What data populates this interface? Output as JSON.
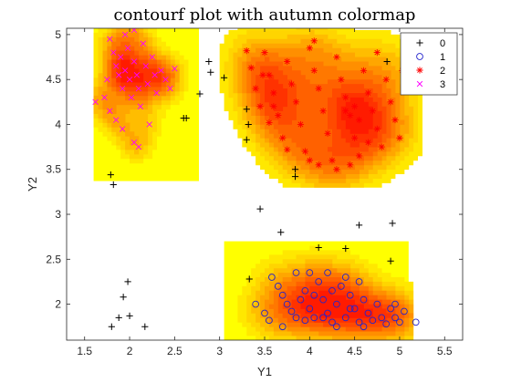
{
  "chart_data": {
    "type": "scatter",
    "title": "contourf plot with autumn colormap",
    "xlabel": "Y1",
    "ylabel": "Y2",
    "xlim": [
      1.3,
      5.7
    ],
    "ylim": [
      1.6,
      5.07
    ],
    "xticks": [
      "1.5",
      "2",
      "2.5",
      "3",
      "3.5",
      "4",
      "4.5",
      "5",
      "5.5"
    ],
    "yticks": [
      "2",
      "2.5",
      "3",
      "3.5",
      "4",
      "4.5",
      "5"
    ],
    "colormap": "autumn",
    "legend_position": "top-right",
    "series": [
      {
        "name": "0",
        "marker": "plus",
        "color": "#000000",
        "points": [
          [
            1.79,
            3.44
          ],
          [
            1.82,
            3.33
          ],
          [
            2.6,
            4.07
          ],
          [
            2.63,
            4.07
          ],
          [
            2.88,
            4.7
          ],
          [
            2.9,
            4.58
          ],
          [
            3.05,
            4.52
          ],
          [
            2.78,
            4.34
          ],
          [
            3.3,
            4.17
          ],
          [
            3.32,
            4.0
          ],
          [
            3.3,
            3.83
          ],
          [
            3.84,
            3.5
          ],
          [
            3.84,
            3.42
          ],
          [
            3.45,
            3.06
          ],
          [
            3.68,
            2.8
          ],
          [
            4.1,
            2.63
          ],
          [
            4.4,
            2.62
          ],
          [
            4.55,
            2.88
          ],
          [
            4.92,
            2.9
          ],
          [
            4.9,
            2.48
          ],
          [
            4.86,
            4.7
          ],
          [
            3.33,
            2.28
          ],
          [
            1.88,
            1.85
          ],
          [
            1.93,
            2.08
          ],
          [
            1.98,
            2.25
          ],
          [
            2.0,
            1.87
          ],
          [
            1.8,
            1.75
          ],
          [
            2.17,
            1.75
          ]
        ]
      },
      {
        "name": "1",
        "marker": "circle",
        "color": "#2323cc",
        "points": [
          [
            3.58,
            2.3
          ],
          [
            3.65,
            2.2
          ],
          [
            3.7,
            2.1
          ],
          [
            3.75,
            2.0
          ],
          [
            3.8,
            1.92
          ],
          [
            3.85,
            1.85
          ],
          [
            3.9,
            2.05
          ],
          [
            3.95,
            2.15
          ],
          [
            4.0,
            1.95
          ],
          [
            4.05,
            1.85
          ],
          [
            4.1,
            2.25
          ],
          [
            4.15,
            2.05
          ],
          [
            4.2,
            1.9
          ],
          [
            4.25,
            1.8
          ],
          [
            4.3,
            2.0
          ],
          [
            4.35,
            2.2
          ],
          [
            4.4,
            1.85
          ],
          [
            4.45,
            2.1
          ],
          [
            4.5,
            1.95
          ],
          [
            4.55,
            1.8
          ],
          [
            4.6,
            2.05
          ],
          [
            4.65,
            1.9
          ],
          [
            4.7,
            1.82
          ],
          [
            4.75,
            2.0
          ],
          [
            4.8,
            1.85
          ],
          [
            4.85,
            1.78
          ],
          [
            4.9,
            1.95
          ],
          [
            4.95,
            1.85
          ],
          [
            5.0,
            1.8
          ],
          [
            5.05,
            1.92
          ],
          [
            3.4,
            2.0
          ],
          [
            3.5,
            1.9
          ],
          [
            3.55,
            1.82
          ],
          [
            3.7,
            1.75
          ],
          [
            3.85,
            2.35
          ],
          [
            4.0,
            2.35
          ],
          [
            4.2,
            2.35
          ],
          [
            4.4,
            2.3
          ],
          [
            4.3,
            1.75
          ],
          [
            4.6,
            1.75
          ],
          [
            4.15,
            1.85
          ],
          [
            4.05,
            2.1
          ],
          [
            3.95,
            1.82
          ],
          [
            4.25,
            2.15
          ],
          [
            4.45,
            1.95
          ],
          [
            4.55,
            2.25
          ],
          [
            5.18,
            1.8
          ],
          [
            4.95,
            2.0
          ]
        ]
      },
      {
        "name": "2",
        "marker": "star",
        "color": "#ff0000",
        "points": [
          [
            3.3,
            4.82
          ],
          [
            3.35,
            4.63
          ],
          [
            3.4,
            4.4
          ],
          [
            3.45,
            4.2
          ],
          [
            3.5,
            4.8
          ],
          [
            3.55,
            4.55
          ],
          [
            3.6,
            4.35
          ],
          [
            3.65,
            4.1
          ],
          [
            3.7,
            3.85
          ],
          [
            3.75,
            4.7
          ],
          [
            3.8,
            4.45
          ],
          [
            3.85,
            4.25
          ],
          [
            3.9,
            4.0
          ],
          [
            3.95,
            3.7
          ],
          [
            4.0,
            4.85
          ],
          [
            4.05,
            4.6
          ],
          [
            4.1,
            4.4
          ],
          [
            4.15,
            4.15
          ],
          [
            4.2,
            3.9
          ],
          [
            4.25,
            3.6
          ],
          [
            4.3,
            4.75
          ],
          [
            4.35,
            4.5
          ],
          [
            4.4,
            4.3
          ],
          [
            4.45,
            4.1
          ],
          [
            4.5,
            3.85
          ],
          [
            4.55,
            3.65
          ],
          [
            4.6,
            4.6
          ],
          [
            4.65,
            4.35
          ],
          [
            4.7,
            4.15
          ],
          [
            4.75,
            3.95
          ],
          [
            4.8,
            3.75
          ],
          [
            4.85,
            4.5
          ],
          [
            4.9,
            4.25
          ],
          [
            4.95,
            4.05
          ],
          [
            5.0,
            3.85
          ],
          [
            5.03,
            4.6
          ],
          [
            4.05,
            4.93
          ],
          [
            3.48,
            4.55
          ],
          [
            3.6,
            4.2
          ],
          [
            4.1,
            3.55
          ],
          [
            4.45,
            3.55
          ],
          [
            4.4,
            4.15
          ],
          [
            4.5,
            4.2
          ],
          [
            4.55,
            4.05
          ],
          [
            3.55,
            4.02
          ],
          [
            3.75,
            3.72
          ],
          [
            4.0,
            3.6
          ],
          [
            4.3,
            3.5
          ],
          [
            4.75,
            4.8
          ],
          [
            4.65,
            3.8
          ]
        ]
      },
      {
        "name": "3",
        "marker": "x",
        "color": "#ff00ff",
        "points": [
          [
            1.78,
            4.95
          ],
          [
            1.82,
            4.8
          ],
          [
            1.85,
            4.65
          ],
          [
            1.88,
            4.55
          ],
          [
            1.9,
            4.75
          ],
          [
            1.92,
            4.4
          ],
          [
            1.95,
            4.6
          ],
          [
            1.98,
            4.85
          ],
          [
            2.0,
            4.5
          ],
          [
            2.02,
            4.3
          ],
          [
            2.05,
            4.7
          ],
          [
            2.08,
            4.55
          ],
          [
            2.1,
            4.4
          ],
          [
            2.12,
            4.2
          ],
          [
            2.15,
            4.9
          ],
          [
            2.18,
            4.65
          ],
          [
            2.2,
            4.45
          ],
          [
            2.22,
            4.0
          ],
          [
            2.25,
            4.75
          ],
          [
            2.28,
            4.55
          ],
          [
            2.3,
            4.35
          ],
          [
            2.35,
            4.6
          ],
          [
            2.4,
            4.5
          ],
          [
            1.72,
            4.3
          ],
          [
            1.75,
            4.5
          ],
          [
            1.78,
            4.15
          ],
          [
            1.85,
            4.05
          ],
          [
            1.92,
            3.95
          ],
          [
            2.05,
            3.8
          ],
          [
            2.1,
            3.75
          ],
          [
            2.05,
            5.05
          ],
          [
            1.95,
            5.0
          ],
          [
            1.62,
            4.25
          ],
          [
            2.45,
            4.4
          ],
          [
            2.5,
            4.62
          ]
        ]
      }
    ]
  }
}
